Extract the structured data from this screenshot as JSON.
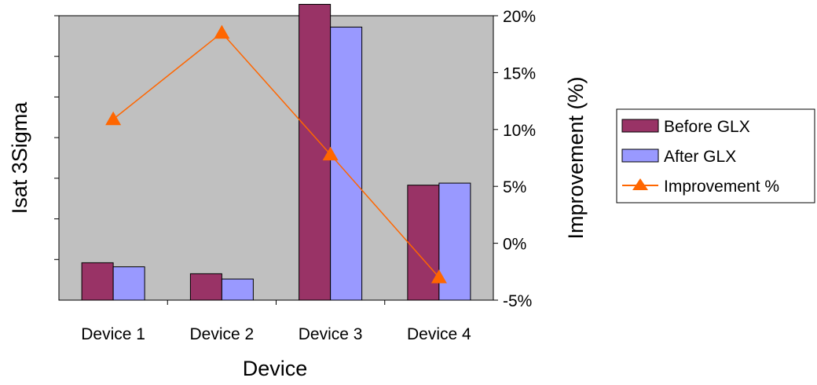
{
  "chart_data": {
    "type": "bar",
    "categories": [
      "Device 1",
      "Device 2",
      "Device 3",
      "Device 4"
    ],
    "xlabel": "Device",
    "ylabel": "Isat 3Sigma",
    "y2label": "Improvement (%)",
    "ylim": [
      0,
      7
    ],
    "y2lim": [
      -5,
      20
    ],
    "y2ticks": [
      "-5%",
      "0%",
      "5%",
      "10%",
      "15%",
      "20%"
    ],
    "y2tick_values": [
      -5,
      0,
      5,
      10,
      15,
      20
    ],
    "grid": false,
    "legend_position": "right",
    "series": [
      {
        "name": "Before GLX",
        "kind": "bar",
        "color": "#993366",
        "values": [
          0.92,
          0.65,
          7.28,
          2.83
        ]
      },
      {
        "name": "After GLX",
        "kind": "bar",
        "color": "#9999ff",
        "values": [
          0.82,
          0.52,
          6.72,
          2.88
        ]
      },
      {
        "name": "Improvement %",
        "kind": "line",
        "axis": "right",
        "color": "#ff6600",
        "values": [
          10.9,
          18.5,
          7.8,
          -3.0
        ]
      }
    ],
    "plot_background": "#c0c0c0"
  }
}
